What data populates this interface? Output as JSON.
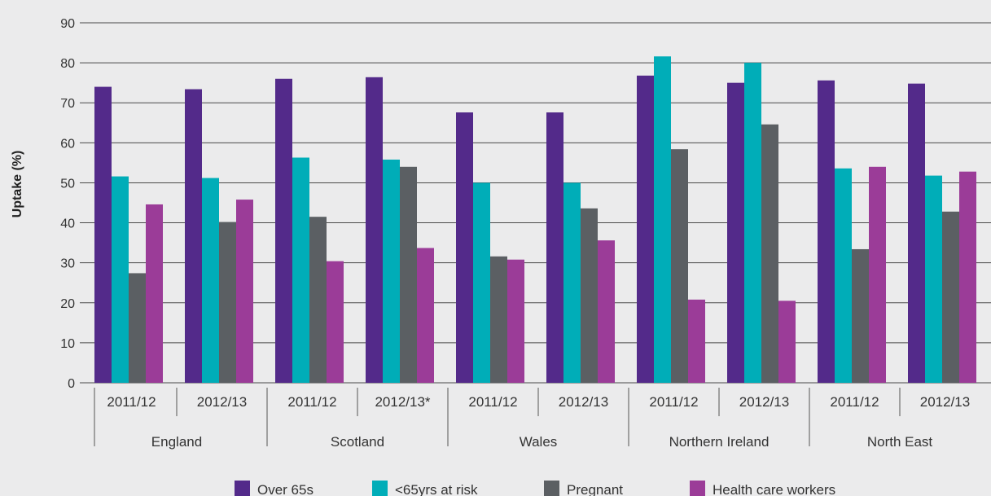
{
  "chart_data": {
    "type": "bar",
    "ylabel": "Uptake (%)",
    "ylim": [
      0,
      90
    ],
    "yticks": [
      0,
      10,
      20,
      30,
      40,
      50,
      60,
      70,
      80,
      90
    ],
    "grid": true,
    "legend_position": "bottom",
    "groups": [
      {
        "name": "England",
        "periods": [
          "2011/12",
          "2012/13"
        ]
      },
      {
        "name": "Scotland",
        "periods": [
          "2011/12",
          "2012/13*"
        ]
      },
      {
        "name": "Wales",
        "periods": [
          "2011/12",
          "2012/13"
        ]
      },
      {
        "name": "Northern Ireland",
        "periods": [
          "2011/12",
          "2012/13"
        ]
      },
      {
        "name": "North East",
        "periods": [
          "2011/12",
          "2012/13"
        ]
      }
    ],
    "series": [
      {
        "name": "Over 65s",
        "color": "#532a8a",
        "values": [
          74,
          73.4,
          76,
          76.4,
          67.6,
          67.6,
          76.8,
          75,
          75.6,
          74.8
        ]
      },
      {
        "name": "<65yrs at risk",
        "color": "#00adb8",
        "values": [
          51.6,
          51.2,
          56.3,
          55.8,
          50,
          50,
          81.6,
          80,
          53.6,
          51.8
        ]
      },
      {
        "name": "Pregnant",
        "color": "#5b5f63",
        "values": [
          27.4,
          40.2,
          41.5,
          54,
          31.6,
          43.6,
          58.4,
          64.6,
          33.4,
          42.8
        ]
      },
      {
        "name": "Health care workers",
        "color": "#9b3c98",
        "values": [
          44.6,
          45.8,
          30.4,
          33.7,
          30.8,
          35.6,
          20.8,
          20.5,
          54,
          52.8
        ]
      }
    ]
  }
}
